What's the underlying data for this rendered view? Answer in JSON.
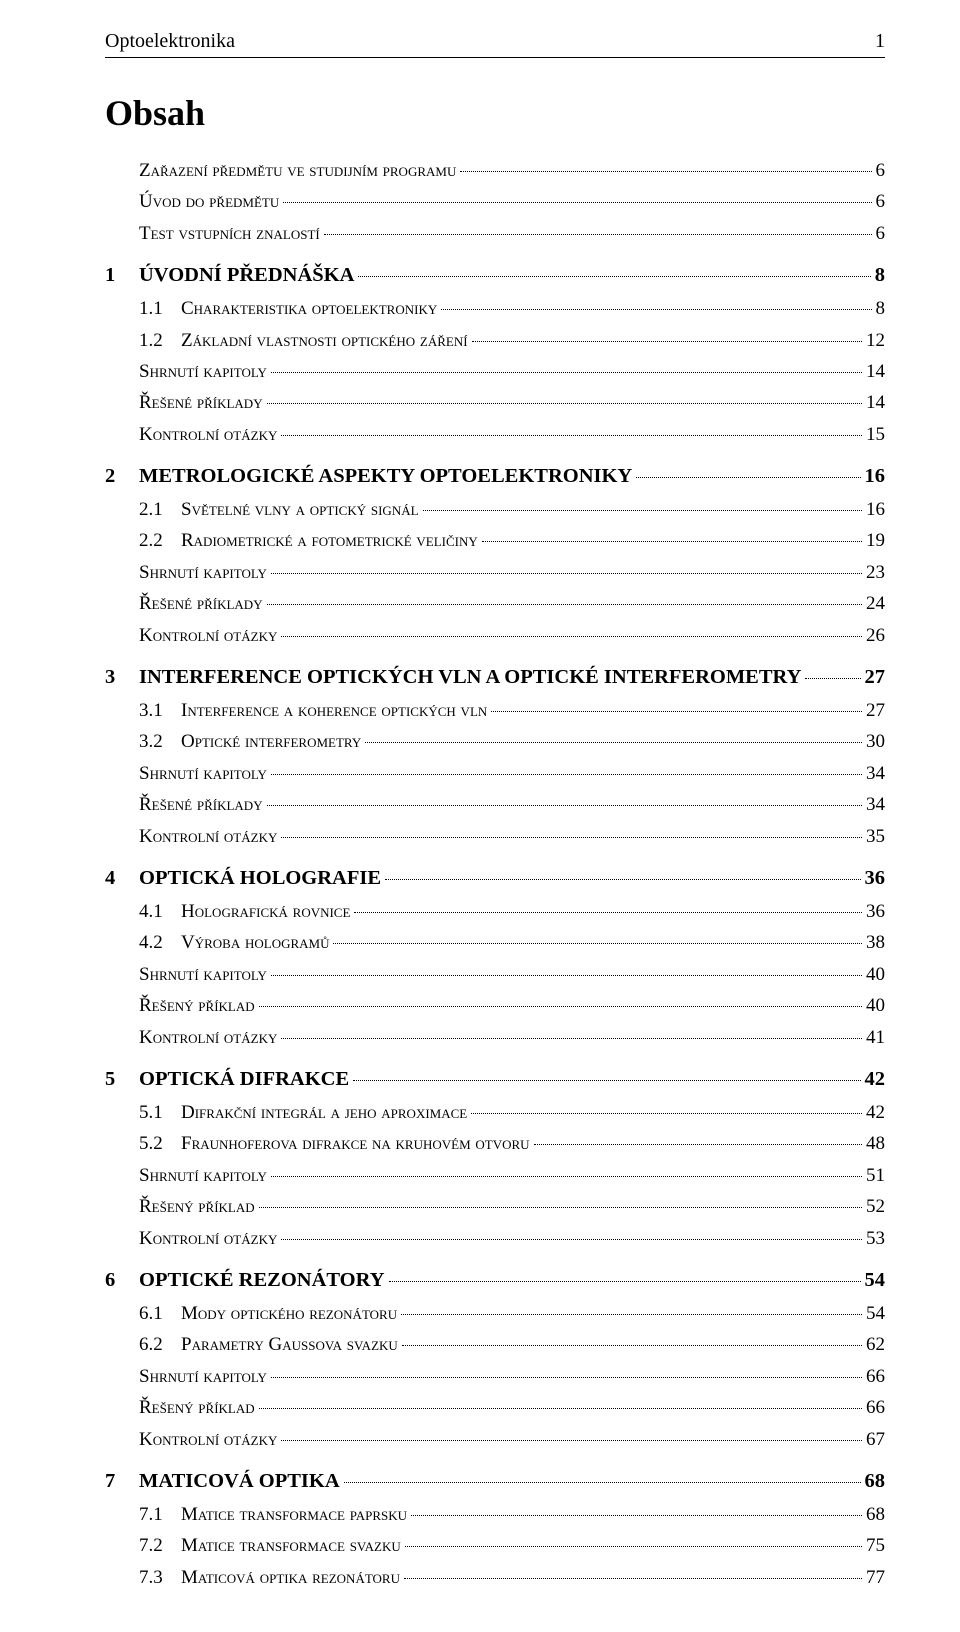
{
  "header": {
    "title": "Optoelektronika",
    "page_number": "1"
  },
  "contents_title": "Obsah",
  "toc": [
    {
      "type": "top",
      "title": "Zařazení předmětu ve studijním programu",
      "page": "6"
    },
    {
      "type": "top",
      "title": "Úvod do předmětu",
      "page": "6"
    },
    {
      "type": "top",
      "title": "Test vstupních znalostí",
      "page": "6"
    },
    {
      "type": "chapter",
      "num": "1",
      "title": "ÚVODNÍ PŘEDNÁŠKA",
      "page": "8"
    },
    {
      "type": "section",
      "num": "1.1",
      "title": "Charakteristika optoelektroniky",
      "page": "8"
    },
    {
      "type": "section",
      "num": "1.2",
      "title": "Základní vlastnosti optického záření",
      "page": "12"
    },
    {
      "type": "aux",
      "title": "Shrnutí kapitoly",
      "page": "14"
    },
    {
      "type": "aux",
      "title": "Řešené příklady",
      "page": "14"
    },
    {
      "type": "aux",
      "title": "Kontrolní otázky",
      "page": "15"
    },
    {
      "type": "chapter",
      "num": "2",
      "title": "METROLOGICKÉ ASPEKTY OPTOELEKTRONIKY",
      "page": "16"
    },
    {
      "type": "section",
      "num": "2.1",
      "title": "Světelné vlny a optický signál",
      "page": "16"
    },
    {
      "type": "section",
      "num": "2.2",
      "title": "Radiometrické a fotometrické veličiny",
      "page": "19"
    },
    {
      "type": "aux",
      "title": "Shrnutí kapitoly",
      "page": "23"
    },
    {
      "type": "aux",
      "title": "Řešené příklady",
      "page": "24"
    },
    {
      "type": "aux",
      "title": "Kontrolní otázky",
      "page": "26"
    },
    {
      "type": "chapter",
      "num": "3",
      "title": "INTERFERENCE OPTICKÝCH VLN A OPTICKÉ INTERFEROMETRY",
      "page": "27"
    },
    {
      "type": "section",
      "num": "3.1",
      "title": "Interference a koherence optických vln",
      "page": "27"
    },
    {
      "type": "section",
      "num": "3.2",
      "title": "Optické interferometry",
      "page": "30"
    },
    {
      "type": "aux",
      "title": "Shrnutí kapitoly",
      "page": "34"
    },
    {
      "type": "aux",
      "title": "Řešené příklady",
      "page": "34"
    },
    {
      "type": "aux",
      "title": "Kontrolní otázky",
      "page": "35"
    },
    {
      "type": "chapter",
      "num": "4",
      "title": "OPTICKÁ HOLOGRAFIE",
      "page": "36"
    },
    {
      "type": "section",
      "num": "4.1",
      "title": "Holografická rovnice",
      "page": "36"
    },
    {
      "type": "section",
      "num": "4.2",
      "title": "Výroba hologramů",
      "page": "38"
    },
    {
      "type": "aux",
      "title": "Shrnutí kapitoly",
      "page": "40"
    },
    {
      "type": "aux",
      "title": "Řešený příklad",
      "page": "40"
    },
    {
      "type": "aux",
      "title": "Kontrolní otázky",
      "page": "41"
    },
    {
      "type": "chapter",
      "num": "5",
      "title": "OPTICKÁ DIFRAKCE",
      "page": "42"
    },
    {
      "type": "section",
      "num": "5.1",
      "title": "Difrakční integrál a jeho aproximace",
      "page": "42"
    },
    {
      "type": "section",
      "num": "5.2",
      "title": "Fraunhoferova difrakce na kruhovém otvoru",
      "page": "48"
    },
    {
      "type": "aux",
      "title": "Shrnutí kapitoly",
      "page": "51"
    },
    {
      "type": "aux",
      "title": "Řešený příklad",
      "page": "52"
    },
    {
      "type": "aux",
      "title": "Kontrolní otázky",
      "page": "53"
    },
    {
      "type": "chapter",
      "num": "6",
      "title": "OPTICKÉ REZONÁTORY",
      "page": "54"
    },
    {
      "type": "section",
      "num": "6.1",
      "title": "Mody optického rezonátoru",
      "page": "54"
    },
    {
      "type": "section",
      "num": "6.2",
      "title": "Parametry Gaussova svazku",
      "page": "62"
    },
    {
      "type": "aux",
      "title": "Shrnutí kapitoly",
      "page": "66"
    },
    {
      "type": "aux",
      "title": "Řešený příklad",
      "page": "66"
    },
    {
      "type": "aux",
      "title": "Kontrolní otázky",
      "page": "67"
    },
    {
      "type": "chapter",
      "num": "7",
      "title": "MATICOVÁ OPTIKA",
      "page": "68"
    },
    {
      "type": "section",
      "num": "7.1",
      "title": "Matice transformace paprsku",
      "page": "68"
    },
    {
      "type": "section",
      "num": "7.2",
      "title": "Matice transformace svazku",
      "page": "75"
    },
    {
      "type": "section",
      "num": "7.3",
      "title": "Maticová optika rezonátoru",
      "page": "77"
    }
  ]
}
